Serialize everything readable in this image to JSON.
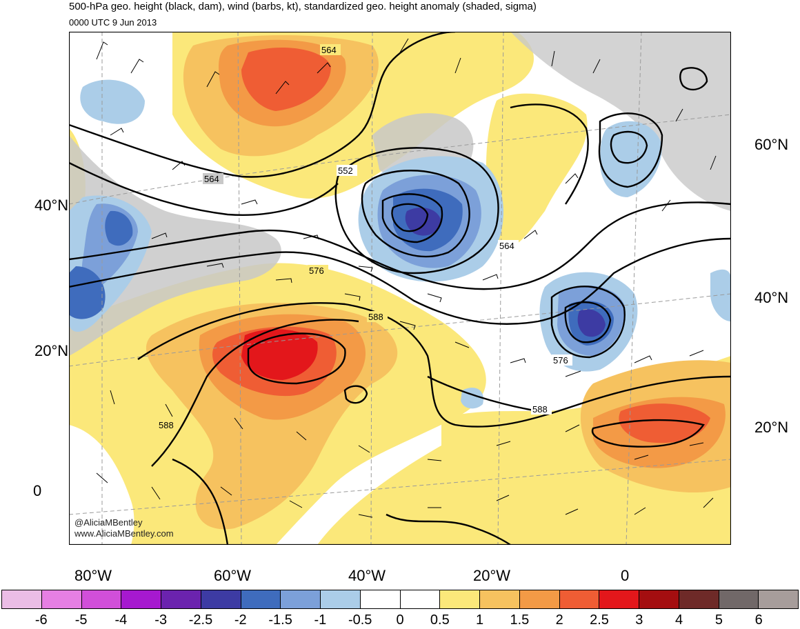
{
  "header": {
    "title": "500-hPa geo. height (black, dam), wind (barbs, kt), standardized geo. height anomaly (shaded, sigma)",
    "valid_time": "0000 UTC 9 Jun 2013"
  },
  "map": {
    "lat_labels_left": [
      "40°N",
      "20°N",
      "0"
    ],
    "lat_labels_right": [
      "60°N",
      "40°N",
      "20°N"
    ],
    "lon_labels": [
      "80°W",
      "60°W",
      "40°W",
      "20°W",
      "0"
    ],
    "contour_labels": [
      "564",
      "564",
      "552",
      "564",
      "576",
      "588",
      "576",
      "588",
      "588"
    ],
    "credit_handle": "@AliciaMBentley",
    "credit_url": "www.AliciaMBentley.com"
  },
  "colorbar": {
    "labels": [
      "-6",
      "-5",
      "-4",
      "-3",
      "-2.5",
      "-2",
      "-1.5",
      "-1",
      "-0.5",
      "0",
      "0.5",
      "1",
      "1.5",
      "2",
      "2.5",
      "3",
      "4",
      "5",
      "6"
    ],
    "colors": [
      "#ebbde6",
      "#e67fe3",
      "#d14fd9",
      "#a619cf",
      "#6b23ae",
      "#3d3ba3",
      "#3f6cbd",
      "#7ca0d9",
      "#abcde8",
      "#ffffff",
      "#ffffff",
      "#fbe87a",
      "#f6c25f",
      "#f39a46",
      "#ef5d34",
      "#e3171b",
      "#a40e10",
      "#6e2a28",
      "#716868",
      "#a79d9b"
    ]
  }
}
